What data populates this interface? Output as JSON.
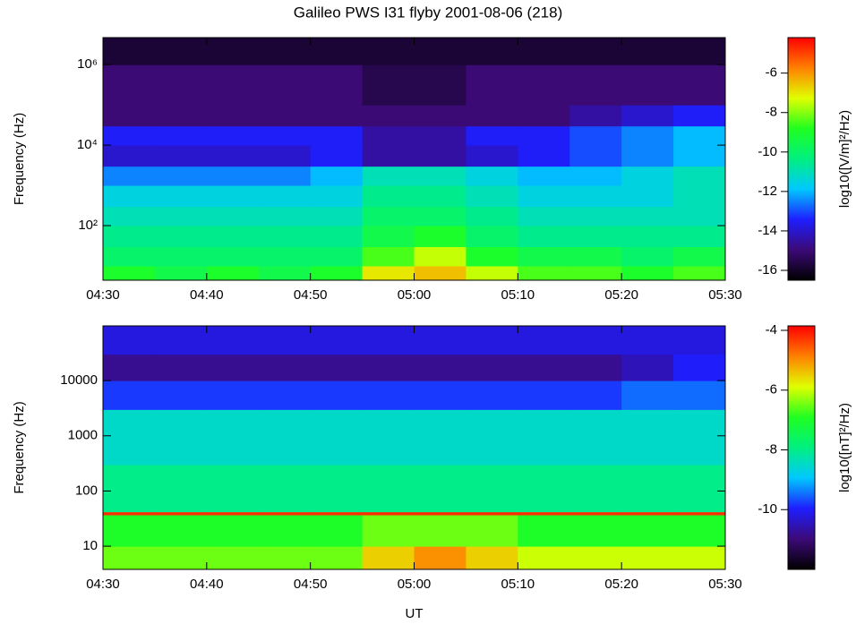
{
  "chart_data": [
    {
      "type": "spectrogram",
      "title": "Galileo PWS I31 flyby 2001-08-06 (218)",
      "y_label": "Frequency (Hz)",
      "colorbar_label": "log10([V/m]²/Hz)",
      "yscale": "log",
      "xlim": [
        "04:30",
        "05:30"
      ],
      "ylim": [
        4.4,
        4700000
      ],
      "xticks": [
        "04:30",
        "04:40",
        "04:50",
        "05:00",
        "05:10",
        "05:20",
        "05:30"
      ],
      "yticks": [
        {
          "value": 100,
          "label": "10²"
        },
        {
          "value": 10000,
          "label": "10⁴"
        },
        {
          "value": 1000000,
          "label": "10⁶"
        }
      ],
      "zlim": [
        -16.5,
        -4.2
      ],
      "zticks": [
        -6,
        -8,
        -10,
        -12,
        -14,
        -16
      ],
      "colormap": [
        "#000000",
        "#3c0a78",
        "#1e1eff",
        "#00c8ff",
        "#00f080",
        "#20ff20",
        "#e0ff00",
        "#ff8000",
        "#ff0000"
      ],
      "xbins": [
        "04:30",
        "04:35",
        "04:40",
        "04:45",
        "04:50",
        "04:55",
        "05:00",
        "05:05",
        "05:10",
        "05:15",
        "05:20",
        "05:25",
        "05:30"
      ],
      "ybins": [
        4.4,
        10,
        30,
        100,
        300,
        1000,
        3000,
        10000,
        30000,
        100000,
        1000000,
        4700000
      ],
      "z": [
        [
          -9,
          -9.5,
          -9,
          -9.5,
          -9,
          -7,
          -6.5,
          -7.5,
          -8.5,
          -8.5,
          -9,
          -8.5
        ],
        [
          -10,
          -10,
          -10,
          -10,
          -10,
          -8.5,
          -7.5,
          -9,
          -9.5,
          -9.5,
          -10,
          -9.5
        ],
        [
          -10.5,
          -10.5,
          -10.5,
          -10.5,
          -10.5,
          -9.5,
          -9,
          -10,
          -10.5,
          -10.5,
          -10.5,
          -10.5
        ],
        [
          -11,
          -11,
          -11,
          -11,
          -11,
          -10,
          -10,
          -10.5,
          -11,
          -11,
          -11,
          -11
        ],
        [
          -11.5,
          -11.5,
          -11.5,
          -11.5,
          -11.5,
          -10.5,
          -10.5,
          -11,
          -11.5,
          -11.5,
          -11.5,
          -11
        ],
        [
          -12.5,
          -12.5,
          -12.5,
          -12.5,
          -12,
          -11,
          -11,
          -11.5,
          -12,
          -12,
          -11.5,
          -11
        ],
        [
          -14,
          -14,
          -14,
          -14,
          -13.5,
          -14.5,
          -14.5,
          -14,
          -13.5,
          -13,
          -12.5,
          -12
        ],
        [
          -13.5,
          -13.5,
          -13.5,
          -13.5,
          -13.5,
          -14.5,
          -14.5,
          -13.5,
          -13.5,
          -13,
          -12.5,
          -12
        ],
        [
          -15,
          -15,
          -15,
          -15,
          -15,
          -15,
          -15,
          -15,
          -15,
          -14.5,
          -14,
          -13.5
        ],
        [
          -15,
          -15,
          -15,
          -15,
          -15,
          -15.5,
          -15.5,
          -15,
          -15,
          -15,
          -15,
          -15
        ],
        [
          -15.8,
          -15.8,
          -15.8,
          -15.8,
          -15.8,
          -15.8,
          -15.8,
          -15.8,
          -15.8,
          -15.8,
          -15.8,
          -15.8
        ]
      ]
    },
    {
      "type": "spectrogram",
      "x_label": "UT",
      "y_label": "Frequency (Hz)",
      "colorbar_label": "log10([nT]²/Hz)",
      "yscale": "log",
      "xlim": [
        "04:30",
        "05:30"
      ],
      "ylim": [
        3.8,
        98000
      ],
      "xticks": [
        "04:30",
        "04:40",
        "04:50",
        "05:00",
        "05:10",
        "05:20",
        "05:30"
      ],
      "yticks": [
        10,
        100,
        1000,
        10000
      ],
      "zlim": [
        -12,
        -3.85
      ],
      "zticks": [
        -4,
        -6,
        -8,
        -10
      ],
      "colormap": [
        "#000000",
        "#3c0a78",
        "#1e1eff",
        "#00c8ff",
        "#00f080",
        "#20ff20",
        "#e0ff00",
        "#ff8000",
        "#ff0000"
      ],
      "xbins": [
        "04:30",
        "04:35",
        "04:40",
        "04:45",
        "04:50",
        "04:55",
        "05:00",
        "05:05",
        "05:10",
        "05:15",
        "05:20",
        "05:25",
        "05:30"
      ],
      "ybins": [
        3.8,
        10,
        37,
        42,
        300,
        3000,
        10000,
        30000,
        98000
      ],
      "z": [
        [
          -6.5,
          -6.5,
          -6.5,
          -6.5,
          -6.5,
          -5.5,
          -5,
          -5.5,
          -6,
          -6,
          -6,
          -6
        ],
        [
          -7,
          -7,
          -7,
          -7,
          -7,
          -6.5,
          -6.5,
          -6.5,
          -7,
          -7,
          -7,
          -7
        ],
        [
          -4.2,
          -4.2,
          -4.2,
          -4.2,
          -4.2,
          -4.2,
          -4.2,
          -4.2,
          -4.2,
          -4.2,
          -4.2,
          -4.2
        ],
        [
          -8,
          -8,
          -8,
          -8,
          -8,
          -8,
          -8,
          -8,
          -8,
          -8,
          -8,
          -8
        ],
        [
          -8.5,
          -8.5,
          -8.5,
          -8.5,
          -8.5,
          -8.5,
          -8.5,
          -8.5,
          -8.5,
          -8.5,
          -8.5,
          -8.5
        ],
        [
          -9.8,
          -9.8,
          -9.8,
          -9.8,
          -9.8,
          -9.8,
          -9.8,
          -9.8,
          -9.8,
          -9.8,
          -9.5,
          -9.5
        ],
        [
          -10.8,
          -10.8,
          -10.8,
          -10.8,
          -10.8,
          -10.8,
          -10.8,
          -10.8,
          -10.8,
          -10.8,
          -10.5,
          -10
        ],
        [
          -10.2,
          -10.2,
          -10.2,
          -10.2,
          -10.2,
          -10.2,
          -10.2,
          -10.2,
          -10.2,
          -10.2,
          -10.2,
          -10.2
        ]
      ]
    }
  ]
}
